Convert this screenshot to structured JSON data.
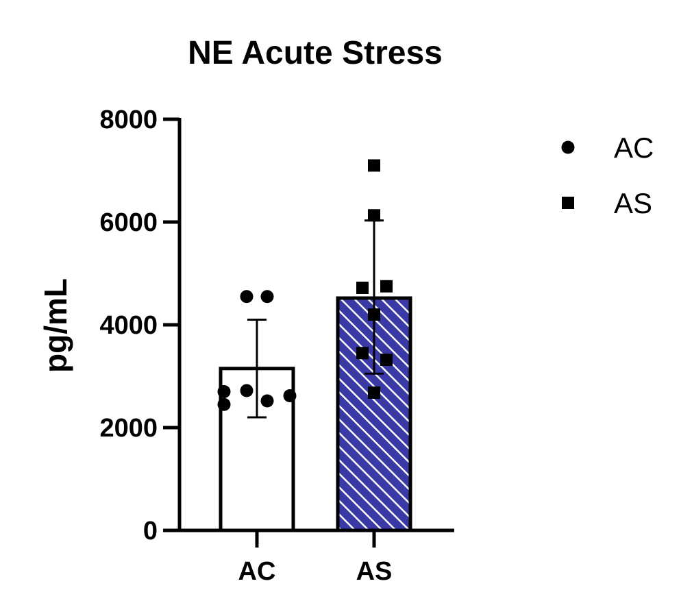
{
  "chart_data": {
    "type": "bar",
    "title": "NE Acute Stress",
    "xlabel": "",
    "ylabel": "pg/mL",
    "ylim": [
      0,
      8000
    ],
    "yticks": [
      0,
      2000,
      4000,
      6000,
      8000
    ],
    "grid": false,
    "legend_position": "top-right",
    "categories": [
      "AC",
      "AS"
    ],
    "series": [
      {
        "name": "AC",
        "mean": 3150,
        "error_low": 2200,
        "error_high": 4100,
        "points": [
          4550,
          4550,
          2700,
          2720,
          2450,
          2520,
          2620
        ],
        "marker": "circle",
        "fill": "white",
        "color": "#000000"
      },
      {
        "name": "AS",
        "mean": 4520,
        "error_low": 3050,
        "error_high": 6030,
        "points": [
          7100,
          6130,
          4720,
          4750,
          4200,
          3450,
          3320,
          2680
        ],
        "marker": "square",
        "fill": "hatched",
        "color": "#3a3aa6"
      }
    ]
  }
}
